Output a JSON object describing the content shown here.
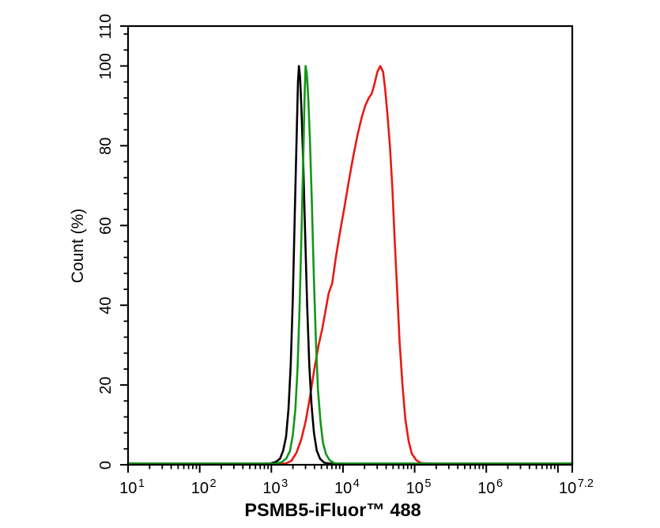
{
  "window": {
    "background": "#ffffff"
  },
  "chart_data": {
    "type": "line",
    "variant": "flow-cytometry-histogram-overlay",
    "title": "",
    "xlabel": "PSMB5-iFluor™ 488",
    "ylabel": "Count  (%)",
    "x_scale": "log10",
    "xlim_log10": [
      1,
      7.2
    ],
    "ylim": [
      0,
      110
    ],
    "grid": false,
    "legend": null,
    "axis_color": "#000000",
    "x_major_ticks_log10": [
      1,
      2,
      3,
      4,
      5,
      6,
      7,
      7.2
    ],
    "x_minor_ticks": "log-subdecade-marks-2-through-9-per-decade",
    "x_tick_labels": [
      {
        "log10": 1,
        "base": "10",
        "exp": "1"
      },
      {
        "log10": 2,
        "base": "10",
        "exp": "2"
      },
      {
        "log10": 3,
        "base": "10",
        "exp": "3"
      },
      {
        "log10": 4,
        "base": "10",
        "exp": "4"
      },
      {
        "log10": 5,
        "base": "10",
        "exp": "5"
      },
      {
        "log10": 6,
        "base": "10",
        "exp": "6"
      },
      {
        "log10": 7.2,
        "base": "10",
        "exp": "7.2"
      }
    ],
    "y_major_ticks": [
      0,
      20,
      40,
      60,
      80,
      100,
      110
    ],
    "y_minor_tick_step": 4,
    "series": [
      {
        "name": "black-control-curve",
        "color": "#000000",
        "z": 1,
        "peak": {
          "log10_x": 3.385,
          "x_approx": 2430,
          "y_percent": 100
        },
        "points_log10x_percent": [
          [
            1.0,
            0.3
          ],
          [
            2.98,
            0.3
          ],
          [
            3.06,
            0.7
          ],
          [
            3.12,
            1.5
          ],
          [
            3.165,
            3.5
          ],
          [
            3.205,
            7
          ],
          [
            3.24,
            14
          ],
          [
            3.27,
            25
          ],
          [
            3.3,
            42
          ],
          [
            3.33,
            65
          ],
          [
            3.355,
            84
          ],
          [
            3.372,
            96
          ],
          [
            3.385,
            100
          ],
          [
            3.402,
            97
          ],
          [
            3.42,
            89
          ],
          [
            3.445,
            76
          ],
          [
            3.47,
            59
          ],
          [
            3.5,
            40
          ],
          [
            3.53,
            25
          ],
          [
            3.56,
            15
          ],
          [
            3.595,
            8
          ],
          [
            3.635,
            3.5
          ],
          [
            3.68,
            1.5
          ],
          [
            3.74,
            0.5
          ],
          [
            3.82,
            0.3
          ],
          [
            7.2,
            0.3
          ]
        ]
      },
      {
        "name": "green-control-curve",
        "color": "#149619",
        "z": 2,
        "peak": {
          "log10_x": 3.478,
          "x_approx": 3000,
          "y_percent": 100
        },
        "points_log10x_percent": [
          [
            1.0,
            0.3
          ],
          [
            3.06,
            0.3
          ],
          [
            3.15,
            0.7
          ],
          [
            3.21,
            1.6
          ],
          [
            3.26,
            3.5
          ],
          [
            3.3,
            7.5
          ],
          [
            3.335,
            14
          ],
          [
            3.365,
            24
          ],
          [
            3.395,
            40
          ],
          [
            3.425,
            61
          ],
          [
            3.447,
            78
          ],
          [
            3.463,
            92
          ],
          [
            3.478,
            100
          ],
          [
            3.495,
            98
          ],
          [
            3.515,
            92
          ],
          [
            3.54,
            81
          ],
          [
            3.565,
            66
          ],
          [
            3.59,
            49
          ],
          [
            3.62,
            32
          ],
          [
            3.65,
            19
          ],
          [
            3.685,
            11
          ],
          [
            3.72,
            5.5
          ],
          [
            3.765,
            2.6
          ],
          [
            3.815,
            1.1
          ],
          [
            3.88,
            0.4
          ],
          [
            3.97,
            0.3
          ],
          [
            7.2,
            0.3
          ]
        ]
      },
      {
        "name": "red-sample-curve",
        "color": "#e81914",
        "z": 0,
        "peak": {
          "log10_x": 4.52,
          "x_approx": 33000,
          "y_percent": 100
        },
        "points_log10x_percent": [
          [
            1.0,
            0.3
          ],
          [
            3.2,
            0.3
          ],
          [
            3.28,
            1
          ],
          [
            3.35,
            3
          ],
          [
            3.42,
            6.5
          ],
          [
            3.48,
            11
          ],
          [
            3.54,
            17
          ],
          [
            3.6,
            24
          ],
          [
            3.66,
            30
          ],
          [
            3.71,
            34
          ],
          [
            3.76,
            39
          ],
          [
            3.8,
            43
          ],
          [
            3.85,
            45.5
          ],
          [
            3.9,
            52
          ],
          [
            3.96,
            58.5
          ],
          [
            4.02,
            64.5
          ],
          [
            4.08,
            71
          ],
          [
            4.14,
            77
          ],
          [
            4.2,
            82.5
          ],
          [
            4.26,
            87
          ],
          [
            4.31,
            90
          ],
          [
            4.36,
            92
          ],
          [
            4.4,
            93
          ],
          [
            4.44,
            95.5
          ],
          [
            4.48,
            98.5
          ],
          [
            4.52,
            100
          ],
          [
            4.56,
            98.5
          ],
          [
            4.59,
            94
          ],
          [
            4.62,
            88
          ],
          [
            4.655,
            80
          ],
          [
            4.69,
            69
          ],
          [
            4.72,
            57
          ],
          [
            4.755,
            44
          ],
          [
            4.79,
            31
          ],
          [
            4.83,
            20
          ],
          [
            4.87,
            11.5
          ],
          [
            4.915,
            6
          ],
          [
            4.96,
            2.8
          ],
          [
            5.02,
            1.2
          ],
          [
            5.08,
            0.5
          ],
          [
            5.16,
            0.3
          ],
          [
            7.2,
            0.3
          ]
        ]
      }
    ]
  }
}
